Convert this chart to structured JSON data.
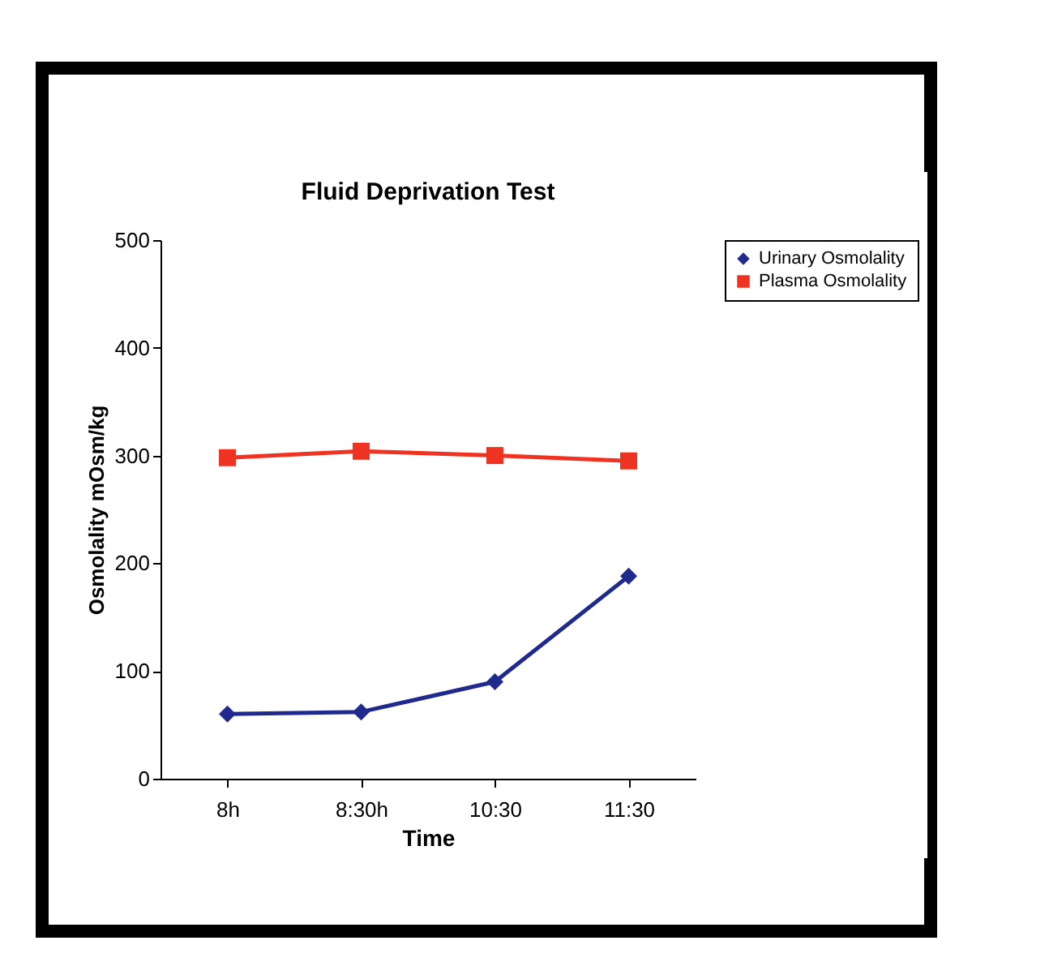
{
  "chart_data": {
    "type": "line",
    "title": "Fluid Deprivation Test",
    "xlabel": "Time",
    "ylabel": "Osmolality mOsm/kg",
    "categories": [
      "8h",
      "8:30h",
      "10:30",
      "11:30"
    ],
    "series": [
      {
        "name": "Urinary Osmolality",
        "color": "#1f2a8c",
        "marker": "diamond",
        "values": [
          60,
          62,
          90,
          188
        ]
      },
      {
        "name": "Plasma Osmolality",
        "color": "#ee3322",
        "marker": "square",
        "values": [
          298,
          304,
          300,
          295
        ]
      }
    ],
    "ylim": [
      0,
      500
    ],
    "yticks": [
      0,
      100,
      200,
      300,
      400,
      500
    ],
    "grid": false,
    "legend": "right",
    "line_style": "solid"
  }
}
